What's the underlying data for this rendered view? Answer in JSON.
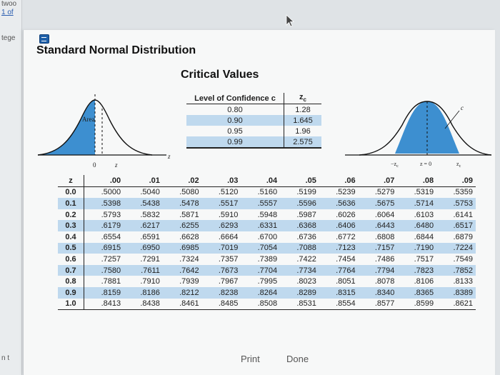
{
  "background": {
    "snippets": [
      "twoo",
      "1 of",
      "tege",
      "n t"
    ],
    "link_color": "#2a5db0"
  },
  "dialog": {
    "title": "Standard Normal Distribution",
    "section_title": "Critical Values",
    "icon": "calculator-icon",
    "accent": "#1e5fa8",
    "shade": "#bfd9ee"
  },
  "critical_values": {
    "headers": [
      "Level of Confidence c",
      "z"
    ],
    "header_sub": "c",
    "rows": [
      [
        "0.80",
        "1.28"
      ],
      [
        "0.90",
        "1.645"
      ],
      [
        "0.95",
        "1.96"
      ],
      [
        "0.99",
        "2.575"
      ]
    ]
  },
  "left_curve": {
    "area_label": "Area",
    "axis_labels": [
      "0",
      "z"
    ],
    "axis_end": "z"
  },
  "right_curve": {
    "c_label": "c",
    "axis_labels": [
      "−z",
      "z = 0",
      "z"
    ],
    "axis_sub": "c",
    "axis_end": "z"
  },
  "z_table": {
    "corner": "z",
    "columns": [
      ".00",
      ".01",
      ".02",
      ".03",
      ".04",
      ".05",
      ".06",
      ".07",
      ".08",
      ".09"
    ],
    "rows": [
      {
        "z": "0.0",
        "values": [
          ".5000",
          ".5040",
          ".5080",
          ".5120",
          ".5160",
          ".5199",
          ".5239",
          ".5279",
          ".5319",
          ".5359"
        ]
      },
      {
        "z": "0.1",
        "values": [
          ".5398",
          ".5438",
          ".5478",
          ".5517",
          ".5557",
          ".5596",
          ".5636",
          ".5675",
          ".5714",
          ".5753"
        ]
      },
      {
        "z": "0.2",
        "values": [
          ".5793",
          ".5832",
          ".5871",
          ".5910",
          ".5948",
          ".5987",
          ".6026",
          ".6064",
          ".6103",
          ".6141"
        ]
      },
      {
        "z": "0.3",
        "values": [
          ".6179",
          ".6217",
          ".6255",
          ".6293",
          ".6331",
          ".6368",
          ".6406",
          ".6443",
          ".6480",
          ".6517"
        ]
      },
      {
        "z": "0.4",
        "values": [
          ".6554",
          ".6591",
          ".6628",
          ".6664",
          ".6700",
          ".6736",
          ".6772",
          ".6808",
          ".6844",
          ".6879"
        ]
      },
      {
        "z": "0.5",
        "values": [
          ".6915",
          ".6950",
          ".6985",
          ".7019",
          ".7054",
          ".7088",
          ".7123",
          ".7157",
          ".7190",
          ".7224"
        ]
      },
      {
        "z": "0.6",
        "values": [
          ".7257",
          ".7291",
          ".7324",
          ".7357",
          ".7389",
          ".7422",
          ".7454",
          ".7486",
          ".7517",
          ".7549"
        ]
      },
      {
        "z": "0.7",
        "values": [
          ".7580",
          ".7611",
          ".7642",
          ".7673",
          ".7704",
          ".7734",
          ".7764",
          ".7794",
          ".7823",
          ".7852"
        ]
      },
      {
        "z": "0.8",
        "values": [
          ".7881",
          ".7910",
          ".7939",
          ".7967",
          ".7995",
          ".8023",
          ".8051",
          ".8078",
          ".8106",
          ".8133"
        ]
      },
      {
        "z": "0.9",
        "values": [
          ".8159",
          ".8186",
          ".8212",
          ".8238",
          ".8264",
          ".8289",
          ".8315",
          ".8340",
          ".8365",
          ".8389"
        ]
      },
      {
        "z": "1.0",
        "values": [
          ".8413",
          ".8438",
          ".8461",
          ".8485",
          ".8508",
          ".8531",
          ".8554",
          ".8577",
          ".8599",
          ".8621"
        ]
      }
    ]
  },
  "buttons": {
    "print_label": "Print",
    "done_label": "Done"
  }
}
